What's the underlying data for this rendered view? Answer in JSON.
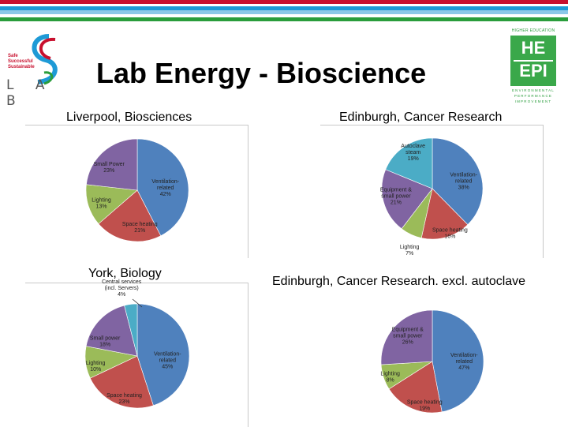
{
  "title": "Lab Energy - Bioscience",
  "logos": {
    "lab": {
      "small_text": [
        "Safe",
        "Successful",
        "Sustainable"
      ],
      "letters": "L A B"
    },
    "heepi": {
      "top_text": "HIGHER EDUCATION",
      "line1": "HE",
      "line2": "EPI",
      "bottom_text": [
        "ENVIRONMENTAL",
        "PERFORMANCE",
        "IMPROVEMENT"
      ],
      "color": "#3aa84a"
    }
  },
  "captions": {
    "top_left": "Liverpool, Biosciences",
    "top_right": "Edinburgh, Cancer Research",
    "bottom_left": "York, Biology",
    "bottom_right": "Edinburgh, Cancer Research. excl. autoclave"
  },
  "colors": {
    "ventilation": "#4f81bd",
    "space_heating": "#c0504d",
    "lighting": "#9bbb59",
    "small_power": "#8064a2",
    "autoclave": "#4bacc6",
    "central": "#4bacc6"
  },
  "chart_data": [
    {
      "type": "pie",
      "title": "Liverpool, Biosciences",
      "slices": [
        {
          "label": "Ventilation-related",
          "value": 42,
          "pct": "42%",
          "color": "#4f81bd"
        },
        {
          "label": "Space heating",
          "value": 21,
          "pct": "21%",
          "color": "#c0504d"
        },
        {
          "label": "Lighting",
          "value": 13,
          "pct": "13%",
          "color": "#9bbb59"
        },
        {
          "label": "Small Power",
          "value": 23,
          "pct": "23%",
          "color": "#8064a2"
        }
      ]
    },
    {
      "type": "pie",
      "title": "Edinburgh, Cancer Research",
      "slices": [
        {
          "label": "Ventilation-related",
          "value": 38,
          "pct": "38%",
          "color": "#4f81bd"
        },
        {
          "label": "Space heating",
          "value": 16,
          "pct": "16%",
          "color": "#c0504d"
        },
        {
          "label": "Lighting",
          "value": 7,
          "pct": "7%",
          "color": "#9bbb59"
        },
        {
          "label": "Equipment & small power",
          "value": 21,
          "pct": "21%",
          "color": "#8064a2"
        },
        {
          "label": "Autoclave steam",
          "value": 19,
          "pct": "19%",
          "color": "#4bacc6"
        }
      ]
    },
    {
      "type": "pie",
      "title": "York, Biology",
      "slices": [
        {
          "label": "Ventilation-related",
          "value": 45,
          "pct": "45%",
          "color": "#4f81bd"
        },
        {
          "label": "Space heating",
          "value": 23,
          "pct": "23%",
          "color": "#c0504d"
        },
        {
          "label": "Lighting",
          "value": 10,
          "pct": "10%",
          "color": "#9bbb59"
        },
        {
          "label": "Small power",
          "value": 18,
          "pct": "18%",
          "color": "#8064a2"
        },
        {
          "label": "Central services (incl. Servers)",
          "value": 4,
          "pct": "4%",
          "color": "#4bacc6"
        }
      ]
    },
    {
      "type": "pie",
      "title": "Edinburgh, Cancer Research. excl. autoclave",
      "slices": [
        {
          "label": "Ventilation-related",
          "value": 47,
          "pct": "47%",
          "color": "#4f81bd"
        },
        {
          "label": "Space heating",
          "value": 19,
          "pct": "19%",
          "color": "#c0504d"
        },
        {
          "label": "Lighting",
          "value": 8,
          "pct": "8%",
          "color": "#9bbb59"
        },
        {
          "label": "Equipment & small power",
          "value": 26,
          "pct": "26%",
          "color": "#8064a2"
        }
      ]
    }
  ]
}
